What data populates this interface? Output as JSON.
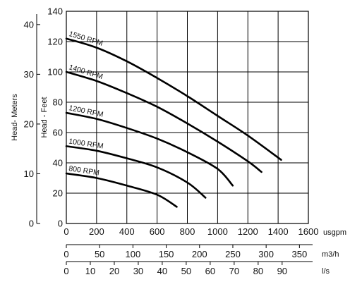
{
  "chart_data": {
    "type": "line",
    "xlabel": "usgpm",
    "ylabel": "Head - Feet",
    "secondary_ylabel": "Head- Meters",
    "x_ticks": [
      "0",
      "200",
      "400",
      "600",
      "800",
      "1000",
      "1200",
      "1400",
      "1600"
    ],
    "y_ticks": [
      "0",
      "20",
      "40",
      "60",
      "80",
      "100",
      "120",
      "140"
    ],
    "meter_ticks": [
      "0",
      "10",
      "20",
      "30",
      "40"
    ],
    "meter_values": [
      0,
      10,
      20,
      30,
      40
    ],
    "secondary_x_axes": [
      {
        "unit": "m3/h",
        "ticks": [
          "0",
          "50",
          "100",
          "150",
          "200",
          "250",
          "300",
          "350"
        ],
        "values": [
          0,
          50,
          100,
          150,
          200,
          250,
          300,
          350
        ]
      },
      {
        "unit": "l/s",
        "ticks": [
          "0",
          "10",
          "20",
          "30",
          "40",
          "50",
          "60",
          "70",
          "80",
          "90"
        ],
        "values": [
          0,
          10,
          20,
          30,
          40,
          50,
          60,
          70,
          80,
          90
        ]
      }
    ],
    "xlim": [
      0,
      1600
    ],
    "ylim": [
      0,
      140
    ],
    "grid": true,
    "series": [
      {
        "name": "1550 RPM",
        "x": [
          0,
          200,
          400,
          600,
          800,
          1000,
          1200,
          1420
        ],
        "y": [
          122,
          116,
          107,
          96,
          84,
          71,
          58,
          42
        ]
      },
      {
        "name": "1400 RPM",
        "x": [
          0,
          200,
          400,
          600,
          800,
          1000,
          1200,
          1290
        ],
        "y": [
          100,
          94,
          86,
          77,
          66,
          54,
          41,
          34
        ]
      },
      {
        "name": "1200 RPM",
        "x": [
          0,
          200,
          400,
          600,
          800,
          1000,
          1100
        ],
        "y": [
          73,
          69,
          63,
          56,
          47,
          36,
          25
        ]
      },
      {
        "name": "1000 RPM",
        "x": [
          0,
          200,
          400,
          600,
          800,
          920
        ],
        "y": [
          51,
          48,
          43,
          37,
          27,
          17
        ]
      },
      {
        "name": "800 RPM",
        "x": [
          0,
          200,
          400,
          600,
          730
        ],
        "y": [
          33,
          30,
          25,
          19,
          11
        ]
      }
    ]
  }
}
